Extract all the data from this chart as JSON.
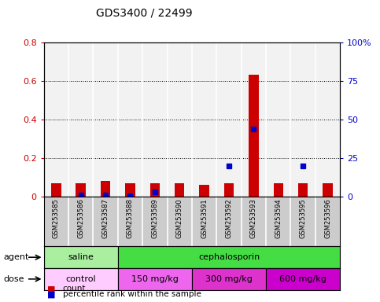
{
  "title": "GDS3400 / 22499",
  "samples": [
    "GSM253585",
    "GSM253586",
    "GSM253587",
    "GSM253588",
    "GSM253589",
    "GSM253590",
    "GSM253591",
    "GSM253592",
    "GSM253593",
    "GSM253594",
    "GSM253595",
    "GSM253596"
  ],
  "count_values": [
    0.07,
    0.07,
    0.08,
    0.07,
    0.07,
    0.07,
    0.06,
    0.07,
    0.63,
    0.07,
    0.07,
    0.07
  ],
  "percentile_values": [
    null,
    1.0,
    1.0,
    0.5,
    3.0,
    null,
    null,
    20.0,
    44.0,
    null,
    20.0,
    null
  ],
  "ylim_left": [
    0,
    0.8
  ],
  "ylim_right": [
    0,
    100
  ],
  "yticks_left": [
    0.0,
    0.2,
    0.4,
    0.6,
    0.8
  ],
  "ytick_labels_left": [
    "0",
    "0.2",
    "0.4",
    "0.6",
    "0.8"
  ],
  "yticks_right": [
    0,
    25,
    50,
    75,
    100
  ],
  "ytick_labels_right": [
    "0",
    "25",
    "50",
    "75",
    "100%"
  ],
  "count_color": "#cc0000",
  "percentile_color": "#0000cc",
  "agent_row": [
    {
      "label": "saline",
      "start": 0,
      "end": 3,
      "color": "#aaeea0"
    },
    {
      "label": "cephalosporin",
      "start": 3,
      "end": 12,
      "color": "#44dd44"
    }
  ],
  "dose_row": [
    {
      "label": "control",
      "start": 0,
      "end": 3,
      "color": "#ffccff"
    },
    {
      "label": "150 mg/kg",
      "start": 3,
      "end": 6,
      "color": "#ee66ee"
    },
    {
      "label": "300 mg/kg",
      "start": 6,
      "end": 9,
      "color": "#dd33cc"
    },
    {
      "label": "600 mg/kg",
      "start": 9,
      "end": 12,
      "color": "#cc00cc"
    }
  ],
  "legend_items": [
    {
      "label": "count",
      "color": "#cc0000"
    },
    {
      "label": "percentile rank within the sample",
      "color": "#0000cc"
    }
  ],
  "agent_label": "agent",
  "dose_label": "dose",
  "bg_color": "#ffffff",
  "tick_label_color_left": "#cc0000",
  "tick_label_color_right": "#0000cc",
  "bar_width": 0.4,
  "sample_bg_color": "#cccccc",
  "plot_bg_color": "#ffffff"
}
